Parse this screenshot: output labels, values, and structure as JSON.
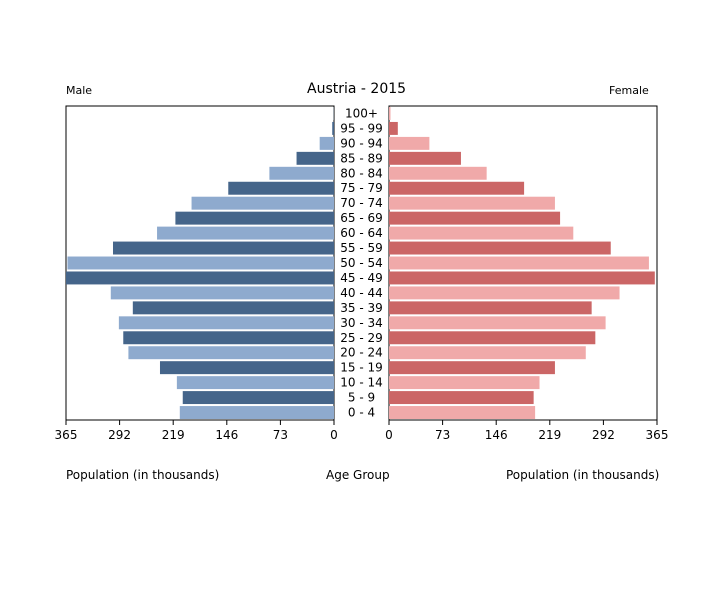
{
  "chart_data": {
    "type": "bar",
    "title": "Austria - 2015",
    "left_label": "Male",
    "right_label": "Female",
    "left_axis_label": "Population (in thousands)",
    "center_axis_label": "Age Group",
    "right_axis_label": "Population (in thousands)",
    "categories": [
      "100+",
      "95 - 99",
      "90 - 94",
      "85 - 89",
      "80 - 84",
      "75 - 79",
      "70 - 74",
      "65 - 69",
      "60 - 64",
      "55 - 59",
      "50 - 54",
      "45 - 49",
      "40 - 44",
      "35 - 39",
      "30 - 34",
      "25 - 29",
      "20 - 24",
      "15 - 19",
      "10 - 14",
      "5 - 9",
      "0 - 4"
    ],
    "xlim": [
      0,
      365
    ],
    "ticks": [
      365,
      292,
      219,
      146,
      73,
      0
    ],
    "series": [
      {
        "name": "Male",
        "values": [
          0.3,
          2.4,
          19.5,
          51,
          88,
          144,
          194,
          216,
          241,
          301,
          363,
          365,
          304,
          274,
          293,
          287,
          280,
          237,
          214,
          206,
          210
        ]
      },
      {
        "name": "Female",
        "values": [
          2,
          12,
          55,
          98,
          133,
          184,
          226,
          233,
          251,
          302,
          354,
          362,
          314,
          276,
          295,
          281,
          268,
          226,
          205,
          197,
          199
        ]
      }
    ],
    "colors": {
      "male_dark": "#45658a",
      "male_light": "#8eaace",
      "female_dark": "#cb6666",
      "female_light": "#f0a9a9"
    },
    "grid": false,
    "legend": "none"
  }
}
